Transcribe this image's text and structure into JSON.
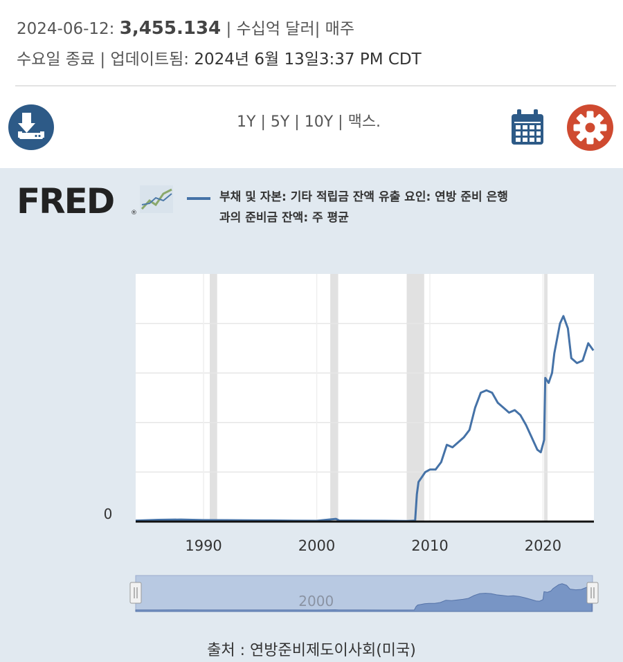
{
  "header": {
    "date_prefix": "2024-06-12:",
    "value": "3,455.134",
    "units_freq": "| 수십억 달러| 매주",
    "notes_prefix": "수요일 종료 | 업데이트됨:",
    "updated": "2024년 6월 13일3:37 PM CDT"
  },
  "toolbar": {
    "ranges": [
      "1Y",
      "5Y",
      "10Y",
      "맥스."
    ],
    "separator": "|",
    "download_icon": "download-icon",
    "calendar_icon": "calendar-icon",
    "settings_icon": "gear-icon",
    "download_color": "#2d5a87",
    "settings_color": "#cf4a30"
  },
  "logo": {
    "text": "FRED",
    "mark": "®"
  },
  "legend": {
    "line1": "부채 및 자본: 기타 적립금 잔액 유출 요인: 연방 준비 은행",
    "line2": "과의 준비금 잔액: 주 평균",
    "color": "#4572a7"
  },
  "chart_data": {
    "type": "line",
    "series": [
      {
        "name": "부채 및 자본: 기타 적립금 잔액 유출 요인: 연방 준비 은행 과의 준비금 잔액: 주 평균",
        "color": "#4572a7",
        "points": [
          [
            1984.0,
            20
          ],
          [
            1986.0,
            35
          ],
          [
            1988.0,
            40
          ],
          [
            1990.0,
            30
          ],
          [
            1992.0,
            28
          ],
          [
            1994.0,
            25
          ],
          [
            1996.0,
            22
          ],
          [
            1998.0,
            18
          ],
          [
            2000.0,
            15
          ],
          [
            2001.7,
            55
          ],
          [
            2002.0,
            20
          ],
          [
            2004.0,
            18
          ],
          [
            2006.0,
            15
          ],
          [
            2008.0,
            10
          ],
          [
            2008.7,
            20
          ],
          [
            2008.85,
            550
          ],
          [
            2009.0,
            800
          ],
          [
            2009.3,
            900
          ],
          [
            2009.6,
            1000
          ],
          [
            2010.0,
            1050
          ],
          [
            2010.5,
            1050
          ],
          [
            2011.0,
            1200
          ],
          [
            2011.5,
            1550
          ],
          [
            2012.0,
            1500
          ],
          [
            2013.0,
            1700
          ],
          [
            2013.5,
            1850
          ],
          [
            2014.0,
            2300
          ],
          [
            2014.5,
            2600
          ],
          [
            2015.0,
            2650
          ],
          [
            2015.5,
            2600
          ],
          [
            2016.0,
            2400
          ],
          [
            2016.5,
            2300
          ],
          [
            2017.0,
            2200
          ],
          [
            2017.5,
            2250
          ],
          [
            2018.0,
            2150
          ],
          [
            2018.5,
            1950
          ],
          [
            2019.0,
            1700
          ],
          [
            2019.5,
            1450
          ],
          [
            2019.8,
            1400
          ],
          [
            2020.1,
            1650
          ],
          [
            2020.2,
            2900
          ],
          [
            2020.5,
            2800
          ],
          [
            2020.8,
            3000
          ],
          [
            2021.0,
            3400
          ],
          [
            2021.5,
            4000
          ],
          [
            2021.8,
            4150
          ],
          [
            2022.2,
            3900
          ],
          [
            2022.5,
            3300
          ],
          [
            2023.0,
            3200
          ],
          [
            2023.5,
            3250
          ],
          [
            2024.0,
            3600
          ],
          [
            2024.45,
            3455
          ]
        ]
      }
    ],
    "x_ticks": [
      "1990",
      "2000",
      "2010",
      "2020"
    ],
    "y_ticks": [
      "0"
    ],
    "xlim": [
      1984,
      2024.5
    ],
    "ylim": [
      0,
      5000
    ],
    "recessions": [
      [
        1990.55,
        1991.2
      ],
      [
        2001.2,
        2001.9
      ],
      [
        2007.95,
        2009.5
      ],
      [
        2020.1,
        2020.4
      ]
    ],
    "grid": true,
    "navigator_label": "2000"
  },
  "source": "출처 : 연방준비제도이사회(미국)"
}
